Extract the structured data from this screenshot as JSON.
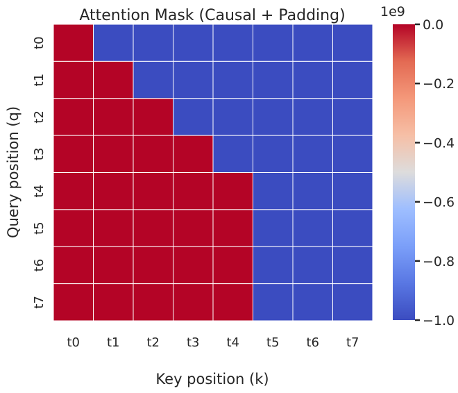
{
  "chart_data": {
    "type": "heatmap",
    "title": "Attention Mask (Causal + Padding)",
    "xlabel": "Key position (k)",
    "ylabel": "Query position (q)",
    "x_categories": [
      "t0",
      "t1",
      "t2",
      "t3",
      "t4",
      "t5",
      "t6",
      "t7"
    ],
    "y_categories": [
      "t0",
      "t1",
      "t2",
      "t3",
      "t4",
      "t5",
      "t6",
      "t7"
    ],
    "values": [
      [
        0,
        -1000000000,
        -1000000000,
        -1000000000,
        -1000000000,
        -1000000000,
        -1000000000,
        -1000000000
      ],
      [
        0,
        0,
        -1000000000,
        -1000000000,
        -1000000000,
        -1000000000,
        -1000000000,
        -1000000000
      ],
      [
        0,
        0,
        0,
        -1000000000,
        -1000000000,
        -1000000000,
        -1000000000,
        -1000000000
      ],
      [
        0,
        0,
        0,
        0,
        -1000000000,
        -1000000000,
        -1000000000,
        -1000000000
      ],
      [
        0,
        0,
        0,
        0,
        0,
        -1000000000,
        -1000000000,
        -1000000000
      ],
      [
        0,
        0,
        0,
        0,
        0,
        -1000000000,
        -1000000000,
        -1000000000
      ],
      [
        0,
        0,
        0,
        0,
        0,
        -1000000000,
        -1000000000,
        -1000000000
      ],
      [
        0,
        0,
        0,
        0,
        0,
        -1000000000,
        -1000000000,
        -1000000000
      ]
    ],
    "colormap": "coolwarm",
    "color_range": [
      -1000000000,
      0
    ],
    "colorbar": {
      "offset_label": "1e9",
      "ticks": [
        0.0,
        -0.2,
        -0.4,
        -0.6,
        -0.8,
        -1.0
      ],
      "tick_labels": [
        "0.0",
        "−0.2",
        "−0.4",
        "−0.6",
        "−0.8",
        "−1.0"
      ]
    },
    "colors": {
      "low": "#3b4cc0",
      "mid": "#dddcdc",
      "high": "#b40426",
      "gridline": "#ffffff"
    },
    "grid": false
  }
}
